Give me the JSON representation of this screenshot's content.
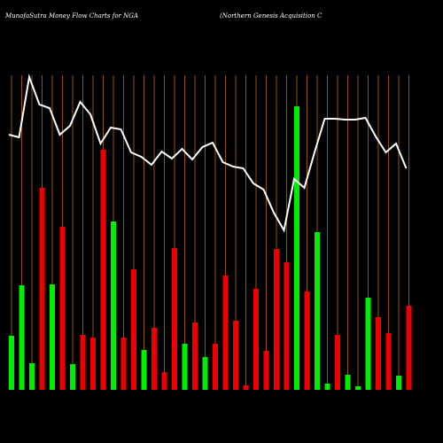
{
  "chart_data": {
    "type": "bar_line",
    "title": "MunafaSutra  Money Flow  Charts for NGA",
    "subtitle": "(Northern  Genesis Acquisition  C",
    "categories": [
      null,
      null,
      null,
      null,
      null,
      null,
      null,
      null,
      null,
      null,
      null,
      null,
      null,
      null,
      null,
      null,
      null,
      null,
      null,
      null,
      null,
      null,
      null,
      null,
      null,
      null,
      null,
      null,
      null,
      null,
      null,
      null,
      null,
      null,
      null,
      null,
      null,
      null,
      null,
      null
    ],
    "values": [
      61,
      118,
      30,
      228,
      119,
      184,
      29,
      62,
      59,
      271,
      190,
      59,
      136,
      45,
      70,
      20,
      160,
      52,
      76,
      37,
      52,
      129,
      78,
      5,
      114,
      44,
      159,
      144,
      320,
      111,
      178,
      7,
      62,
      17,
      4,
      104,
      82,
      64,
      16,
      95
    ],
    "colors": [
      "#00ee00",
      "#00ee00",
      "#00ee00",
      "#ee0000",
      "#00ee00",
      "#ee0000",
      "#00ee00",
      "#ee0000",
      "#ee0000",
      "#ee0000",
      "#00ee00",
      "#ee0000",
      "#ee0000",
      "#00ee00",
      "#ee0000",
      "#ee0000",
      "#ee0000",
      "#00ee00",
      "#ee0000",
      "#00ee00",
      "#ee0000",
      "#ee0000",
      "#ee0000",
      "#ee0000",
      "#ee0000",
      "#ee0000",
      "#ee0000",
      "#ee0000",
      "#00ee00",
      "#ee0000",
      "#00ee00",
      "#00ee00",
      "#ee0000",
      "#00ee00",
      "#00ee00",
      "#00ee00",
      "#ee0000",
      "#ee0000",
      "#00ee00",
      "#ee0000"
    ],
    "line_values": [
      288,
      285,
      353,
      322,
      318,
      288,
      298,
      325,
      311,
      278,
      296,
      294,
      268,
      263,
      254,
      269,
      261,
      272,
      260,
      274,
      279,
      257,
      252,
      250,
      233,
      226,
      200,
      180,
      238,
      228,
      268,
      306,
      306,
      305,
      305,
      307,
      286,
      268,
      278,
      250
    ],
    "line_color": "#ffffff",
    "grid_color": "#b86a10",
    "ylim": [
      0,
      355
    ]
  }
}
